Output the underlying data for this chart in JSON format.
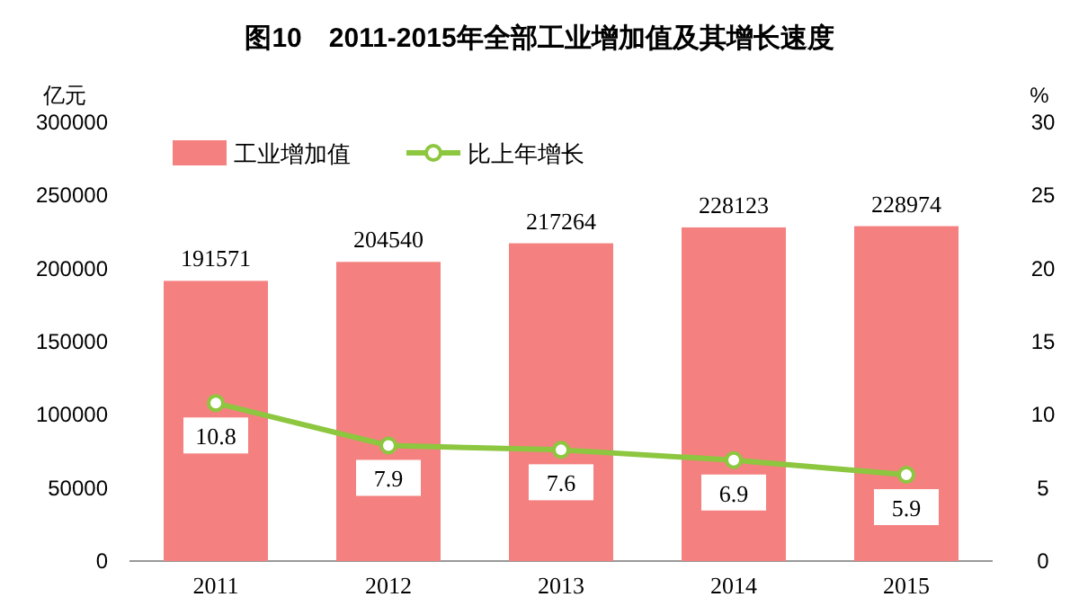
{
  "chart_data": {
    "type": "bar",
    "title": "图10　2011-2015年全部工业增加值及其增长速度",
    "ylabel": "亿元",
    "y2label": "%",
    "categories": [
      "2011",
      "2012",
      "2013",
      "2014",
      "2015"
    ],
    "series": [
      {
        "name": "工业增加值",
        "color": "#f4817f",
        "values": [
          191571,
          204540,
          217264,
          228123,
          228974
        ]
      },
      {
        "name": "比上年增长",
        "type": "line",
        "axis": "y2",
        "color": "#8dc63f",
        "values": [
          10.8,
          7.9,
          7.6,
          6.9,
          5.9
        ]
      }
    ],
    "ylim": [
      0,
      300000
    ],
    "yticks": [
      0,
      50000,
      100000,
      150000,
      200000,
      250000,
      300000
    ],
    "y2lim": [
      0,
      30
    ],
    "y2ticks": [
      0,
      5,
      10,
      15,
      20,
      25,
      30
    ],
    "marker": "circle",
    "data_labels": true,
    "legend": "top left"
  }
}
